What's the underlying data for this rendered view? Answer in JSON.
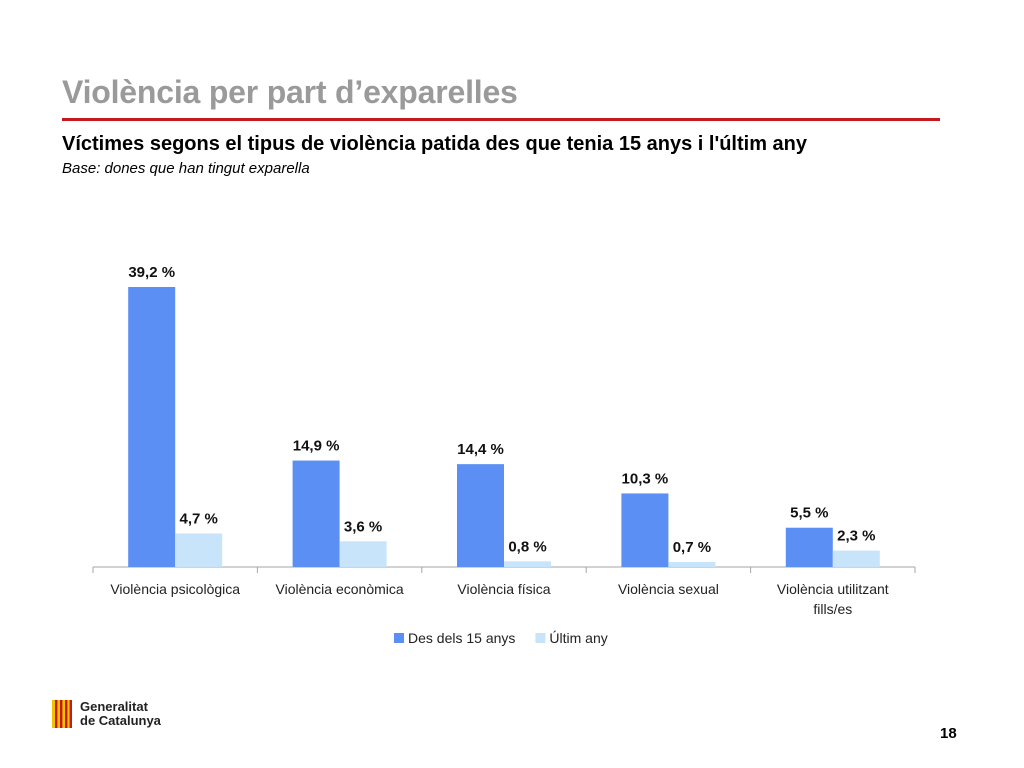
{
  "slide": {
    "title": "Violència per part d’exparelles",
    "subtitle": "Víctimes segons el tipus de violència patida des que tenia 15 anys i l'últim any",
    "base": "Base: dones que han tingut exparella",
    "page_number": "18",
    "logo": {
      "line1": "Generalitat",
      "line2": "de Catalunya",
      "icon": "generalitat-stripes-logo"
    },
    "accent_color": "#c4191e"
  },
  "chart_data": {
    "type": "bar",
    "title": "",
    "xlabel": "",
    "ylabel": "",
    "categories": [
      [
        "Violència psicològica"
      ],
      [
        "Violència econòmica"
      ],
      [
        "Violència física"
      ],
      [
        "Violència sexual"
      ],
      [
        "Violència utilitzant",
        "fills/es"
      ]
    ],
    "series": [
      {
        "name": "Des dels 15 anys",
        "color": "#5b8ff4",
        "values": [
          39.2,
          14.9,
          14.4,
          10.3,
          5.5
        ],
        "labels": [
          "39,2 %",
          "14,9 %",
          "14,4 %",
          "10,3 %",
          "5,5 %"
        ]
      },
      {
        "name": "Últim any",
        "color": "#c7e4fb",
        "values": [
          4.7,
          3.6,
          0.8,
          0.7,
          2.3
        ],
        "labels": [
          "4,7 %",
          "3,6 %",
          "0,8 %",
          "0,7 %",
          "2,3 %"
        ]
      }
    ],
    "ylim": [
      0,
      39.2
    ],
    "grid": false,
    "legend_position": "bottom"
  }
}
